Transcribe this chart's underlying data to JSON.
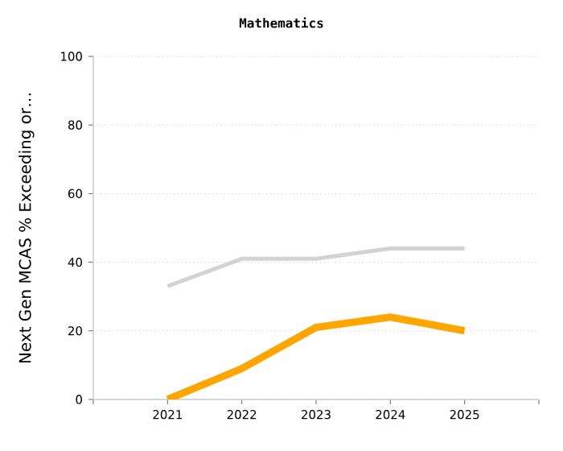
{
  "chart_data": {
    "type": "line",
    "title": "Mathematics",
    "ylabel": "Next Gen MCAS % Exceeding or…",
    "categories": [
      "2021",
      "2022",
      "2023",
      "2024",
      "2025"
    ],
    "series": [
      {
        "color": "#d3d3d3",
        "values": [
          33,
          41,
          41,
          44,
          44
        ]
      },
      {
        "color": "#ffa500",
        "values": [
          0,
          9,
          21,
          24,
          20
        ]
      }
    ],
    "ylim": [
      0,
      100
    ],
    "yticks": [
      0,
      20,
      40,
      60,
      80,
      100
    ],
    "grid": "y",
    "line_style": "solid"
  }
}
